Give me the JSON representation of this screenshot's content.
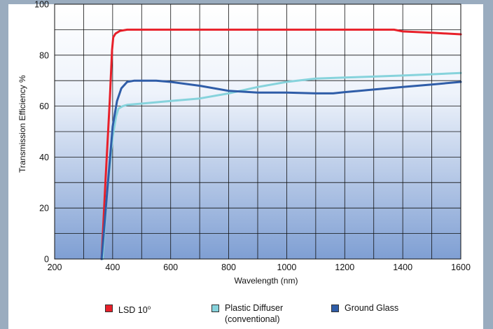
{
  "chart_data": {
    "type": "line",
    "title": "",
    "xlabel": "Wavelength (nm)",
    "ylabel": "Transmission Efficiency %",
    "xlim": [
      200,
      1600
    ],
    "ylim": [
      0,
      100
    ],
    "x_ticks": [
      "200",
      "400",
      "600",
      "800",
      "1000",
      "1200",
      "1400",
      "1600"
    ],
    "y_ticks": [
      "0",
      "20",
      "40",
      "60",
      "80",
      "100"
    ],
    "grid": true,
    "legend": "bottom",
    "series": [
      {
        "name": "LSD 10°",
        "label_main": "LSD 10",
        "label_sup": "o",
        "color": "#e8202a",
        "x": [
          362,
          375,
          390,
          398,
          402,
          410,
          425,
          450,
          500,
          800,
          1300,
          1370,
          1400,
          1500,
          1600
        ],
        "y": [
          0,
          30,
          62,
          82,
          87,
          88.5,
          89.5,
          90,
          90,
          90,
          90,
          90,
          89.3,
          88.8,
          88.2
        ]
      },
      {
        "name": "Plastic Diffuser (conventional)",
        "label_line1": "Plastic Diffuser",
        "label_line2": "(conventional)",
        "color": "#86d3dc",
        "x": [
          365,
          380,
          400,
          412,
          420,
          435,
          450,
          500,
          600,
          700,
          800,
          900,
          1000,
          1100,
          1200,
          1300,
          1400,
          1500,
          1600
        ],
        "y": [
          0,
          25,
          48,
          56,
          59,
          60,
          60.5,
          61,
          62,
          63,
          65,
          67.5,
          69.5,
          70.8,
          71.2,
          71.6,
          72,
          72.5,
          73
        ]
      },
      {
        "name": "Ground Glass",
        "color": "#2f5da8",
        "x": [
          362,
          380,
          400,
          415,
          430,
          450,
          475,
          500,
          550,
          600,
          700,
          800,
          900,
          1000,
          1100,
          1160,
          1200,
          1300,
          1400,
          1500,
          1600
        ],
        "y": [
          0,
          25,
          52,
          62,
          67,
          69.5,
          70,
          70,
          70,
          69.5,
          68,
          66,
          65.3,
          65.3,
          65,
          65,
          65.5,
          66.5,
          67.5,
          68.5,
          69.5
        ]
      }
    ]
  }
}
